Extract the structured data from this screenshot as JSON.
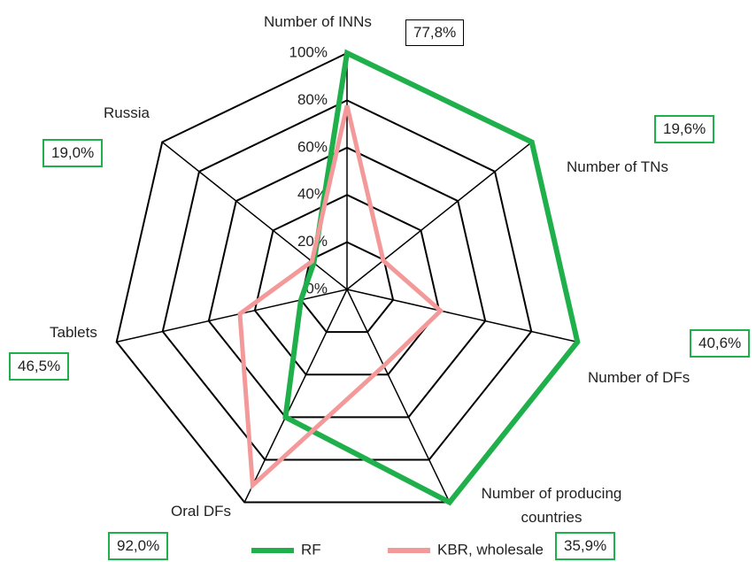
{
  "chart_data": {
    "type": "radar",
    "categories": [
      "Number of INNs",
      "Number of TNs",
      "Number of DFs",
      "Number of producing countries",
      "Oral DFs",
      "Tablets",
      "Russia"
    ],
    "series": [
      {
        "name": "RF",
        "color": "#1fb04c",
        "values": [
          100,
          100,
          100,
          100,
          60,
          20,
          18
        ]
      },
      {
        "name": "KBR, wholesale",
        "color": "#f4999a",
        "values": [
          77.8,
          19.6,
          40.6,
          35.9,
          92.0,
          46.5,
          19.0
        ],
        "value_labels": [
          "77,8%",
          "19,6%",
          "40,6%",
          "35,9%",
          "92,0%",
          "46,5%",
          "19,0%"
        ],
        "value_label_borders": [
          "#000000",
          "#1fb04c",
          "#1fb04c",
          "#1fb04c",
          "#1fb04c",
          "#1fb04c",
          "#1fb04c"
        ]
      }
    ],
    "ylim": [
      0,
      100
    ],
    "yticks": [
      {
        "value": 0,
        "label": "0%"
      },
      {
        "value": 20,
        "label": "20%"
      },
      {
        "value": 40,
        "label": "40%"
      },
      {
        "value": 60,
        "label": "60%"
      },
      {
        "value": 80,
        "label": "80%"
      },
      {
        "value": 100,
        "label": "100%"
      }
    ],
    "grid": true,
    "legend": "bottom"
  }
}
